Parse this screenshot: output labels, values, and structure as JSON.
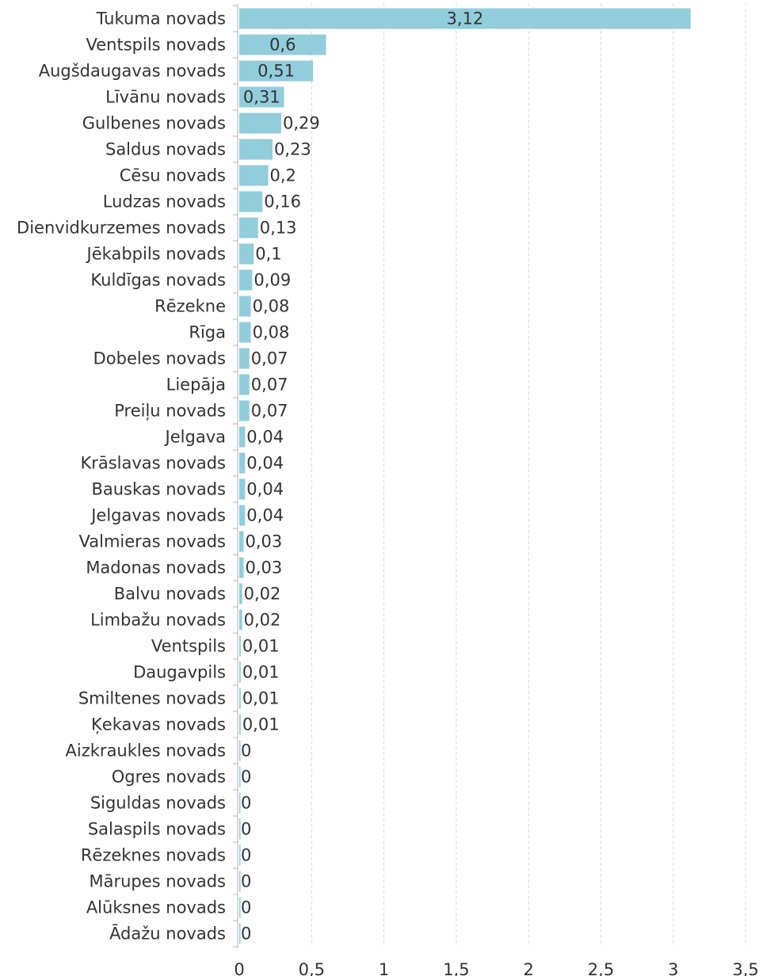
{
  "chart_data": {
    "type": "bar",
    "orientation": "horizontal",
    "title": "",
    "xlabel": "",
    "ylabel": "",
    "xlim": [
      0,
      3.5
    ],
    "x_ticks": [
      "0",
      "0,5",
      "1",
      "1,5",
      "2",
      "2,5",
      "3",
      "3,5"
    ],
    "grid": "vertical dashed",
    "legend": "none",
    "bar_color": "#92cddc",
    "categories": [
      "Tukuma novads",
      "Ventspils novads",
      "Augšdaugavas novads",
      "Līvānu novads",
      "Gulbenes novads",
      "Saldus novads",
      "Cēsu novads",
      "Ludzas novads",
      "Dienvidkurzemes novads",
      "Jēkabpils novads",
      "Kuldīgas novads",
      "Rēzekne",
      "Rīga",
      "Dobeles novads",
      "Liepāja",
      "Preiļu novads",
      "Jelgava",
      "Krāslavas novads",
      "Bauskas novads",
      "Jelgavas novads",
      "Valmieras novads",
      "Madonas novads",
      "Balvu novads",
      "Limbažu novads",
      "Ventspils",
      "Daugavpils",
      "Smiltenes novads",
      "Ķekavas novads",
      "Aizkraukles novads",
      "Ogres novads",
      "Siguldas novads",
      "Salaspils novads",
      "Rēzeknes novads",
      "Mārupes novads",
      "Alūksnes novads",
      "Ādažu novads"
    ],
    "values": [
      3.12,
      0.6,
      0.51,
      0.31,
      0.29,
      0.23,
      0.2,
      0.16,
      0.13,
      0.1,
      0.09,
      0.08,
      0.08,
      0.07,
      0.07,
      0.07,
      0.04,
      0.04,
      0.04,
      0.04,
      0.03,
      0.03,
      0.02,
      0.02,
      0.01,
      0.01,
      0.01,
      0.01,
      0,
      0,
      0,
      0,
      0,
      0,
      0,
      0
    ],
    "data_labels": [
      "3,12",
      "0,6",
      "0,51",
      "0,31",
      "0,29",
      "0,23",
      "0,2",
      "0,16",
      "0,13",
      "0,1",
      "0,09",
      "0,08",
      "0,08",
      "0,07",
      "0,07",
      "0,07",
      "0,04",
      "0,04",
      "0,04",
      "0,04",
      "0,03",
      "0,03",
      "0,02",
      "0,02",
      "0,01",
      "0,01",
      "0,01",
      "0,01",
      "0",
      "0",
      "0",
      "0",
      "0",
      "0",
      "0",
      "0"
    ]
  }
}
